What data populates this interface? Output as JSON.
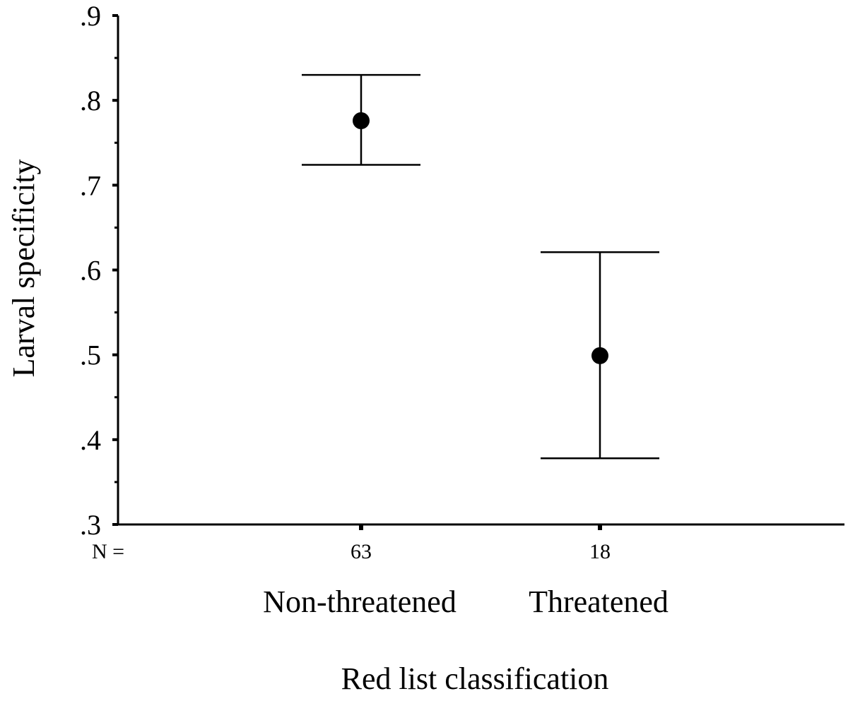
{
  "chart_data": {
    "type": "errorbar",
    "title": "",
    "xlabel": "Red list classification",
    "ylabel": "Larval specificity",
    "ylim": [
      0.3,
      0.9
    ],
    "yticks": [
      ".3",
      ".4",
      ".5",
      ".6",
      ".7",
      ".8",
      ".9"
    ],
    "ytick_values": [
      0.3,
      0.4,
      0.5,
      0.6,
      0.7,
      0.8,
      0.9
    ],
    "n_label": "N =",
    "categories": [
      "Non-threatened",
      "Threatened"
    ],
    "n_values": [
      "63",
      "18"
    ],
    "points": [
      {
        "category": "Non-threatened",
        "mean": 0.776,
        "lower": 0.724,
        "upper": 0.83
      },
      {
        "category": "Threatened",
        "mean": 0.499,
        "lower": 0.378,
        "upper": 0.621
      }
    ],
    "colors": {
      "marks": "#000000"
    }
  }
}
